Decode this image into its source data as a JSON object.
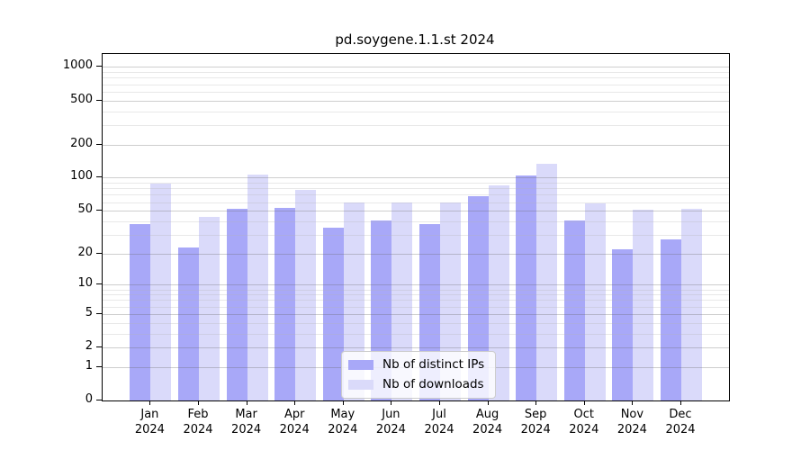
{
  "chart_data": {
    "type": "bar",
    "title": "pd.soygene.1.1.st 2024",
    "categories": [
      "Jan 2024",
      "Feb 2024",
      "Mar 2024",
      "Apr 2024",
      "May 2024",
      "Jun 2024",
      "Jul 2024",
      "Aug 2024",
      "Sep 2024",
      "Oct 2024",
      "Nov 2024",
      "Dec 2024"
    ],
    "x_tick_labels": [
      [
        "Jan",
        "2024"
      ],
      [
        "Feb",
        "2024"
      ],
      [
        "Mar",
        "2024"
      ],
      [
        "Apr",
        "2024"
      ],
      [
        "May",
        "2024"
      ],
      [
        "Jun",
        "2024"
      ],
      [
        "Jul",
        "2024"
      ],
      [
        "Aug",
        "2024"
      ],
      [
        "Sep",
        "2024"
      ],
      [
        "Oct",
        "2024"
      ],
      [
        "Nov",
        "2024"
      ],
      [
        "Dec",
        "2024"
      ]
    ],
    "series": [
      {
        "name": "Nb of distinct IPs",
        "key": "distinct-ips",
        "color": "#a8a8f8",
        "values": [
          38,
          23,
          52,
          53,
          35,
          41,
          38,
          68,
          105,
          41,
          22,
          27
        ]
      },
      {
        "name": "Nb of downloads",
        "key": "downloads",
        "color": "#dadafa",
        "values": [
          88,
          44,
          107,
          77,
          60,
          60,
          60,
          85,
          135,
          58,
          51,
          52
        ]
      }
    ],
    "xlabel": "",
    "ylabel": "",
    "y_axis": {
      "scale": "log10(1+x)",
      "major_ticks": [
        0,
        1,
        2,
        5,
        10,
        20,
        50,
        100,
        200,
        500,
        1000
      ],
      "minor_gridlines": [
        3,
        4,
        6,
        7,
        8,
        9,
        30,
        40,
        60,
        70,
        80,
        90,
        300,
        400,
        600,
        700,
        800,
        900
      ],
      "ylim": [
        0,
        1300
      ]
    },
    "grid": true,
    "legend_position": "inside bottom-center",
    "colors": {
      "background": "#ffffff",
      "frame": "#000000",
      "major_grid": "#c8c8c8",
      "minor_grid": "#ececec",
      "text": "#000000"
    }
  }
}
